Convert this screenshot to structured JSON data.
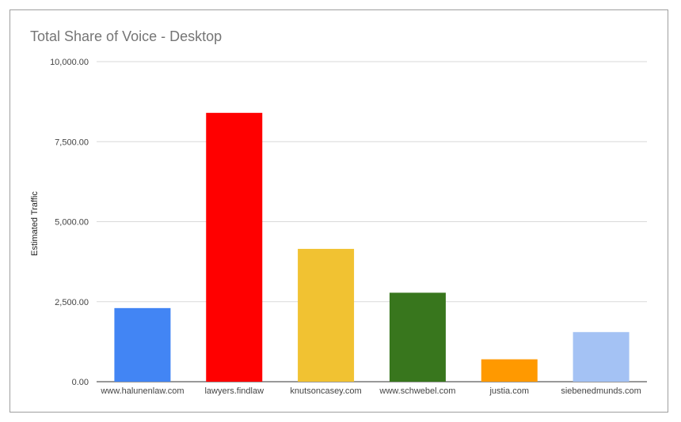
{
  "chart_data": {
    "type": "bar",
    "title": "Total Share of Voice - Desktop",
    "xlabel": "",
    "ylabel": "Estimated Traffic",
    "categories": [
      "www.halunenlaw.com",
      "lawyers.findlaw",
      "knutsoncasey.com",
      "www.schwebel.com",
      "justia.com",
      "siebenedmunds.com"
    ],
    "values": [
      2300,
      8400,
      4150,
      2780,
      700,
      1550
    ],
    "colors": [
      "#4285f4",
      "#ff0000",
      "#f1c232",
      "#38761d",
      "#ff9900",
      "#a4c2f4"
    ],
    "ylim": [
      0,
      10000
    ],
    "yticks": [
      0,
      2500,
      5000,
      7500,
      10000
    ],
    "ytick_labels": [
      "0.00",
      "2,500.00",
      "5,000.00",
      "7,500.00",
      "10,000.00"
    ],
    "grid": true,
    "legend": "none"
  }
}
